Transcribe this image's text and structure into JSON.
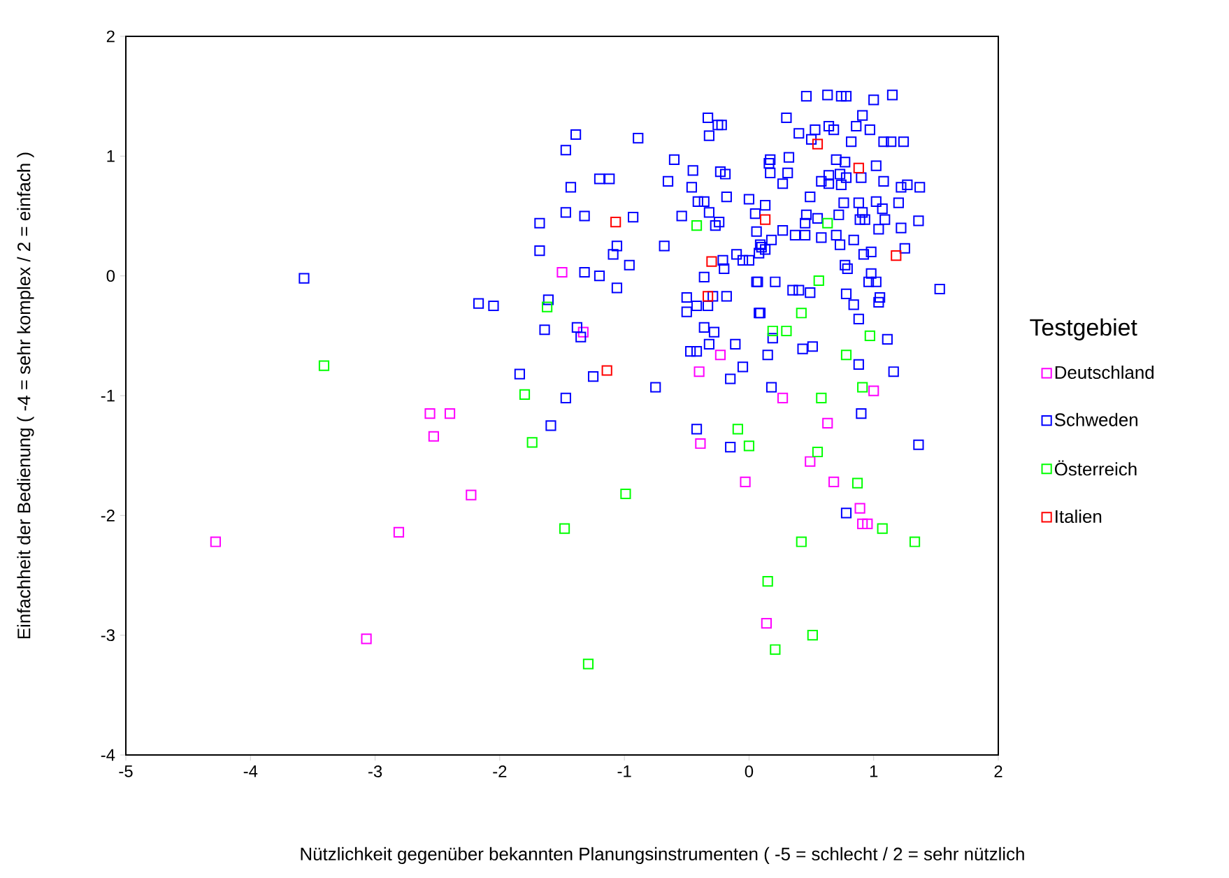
{
  "chart_data": {
    "type": "scatter",
    "xlabel": "Nützlichkeit gegenüber bekannten Planungsinstrumenten ( -5 = schlecht / 2 = sehr nützlich",
    "ylabel": "Einfachheit der Bedienung ( -4 = sehr komplex / 2 = einfach )",
    "legend_title": "Testgebiet",
    "xlim": [
      -5,
      2
    ],
    "ylim": [
      -4,
      2
    ],
    "xticks": [
      -5,
      -4,
      -3,
      -2,
      -1,
      0,
      1,
      2
    ],
    "yticks": [
      -4,
      -3,
      -2,
      -1,
      0,
      1,
      2
    ],
    "grid": false,
    "legend": "right",
    "marker": "square",
    "series": [
      {
        "name": "Deutschland",
        "color": "#ff00ff",
        "x": [
          -4.28,
          -3.07,
          -2.81,
          -2.56,
          -2.53,
          -2.4,
          -2.23,
          -1.5,
          -1.33,
          -0.4,
          -0.39,
          -0.23,
          -0.03,
          0.14,
          0.27,
          0.63,
          0.49,
          0.68,
          1.0,
          0.89,
          0.91,
          0.95
        ],
        "values": [
          -2.22,
          -3.03,
          -2.14,
          -1.15,
          -1.34,
          -1.15,
          -1.83,
          0.03,
          -0.47,
          -0.8,
          -1.4,
          -0.66,
          -1.72,
          -2.9,
          -1.02,
          -1.23,
          -1.55,
          -1.72,
          -0.96,
          -1.94,
          -2.07,
          -2.07
        ]
      },
      {
        "name": "Schweden",
        "color": "#0000ff",
        "x": [
          0.46,
          0.63,
          0.74,
          0.78,
          1.0,
          1.15,
          0.3,
          0.4,
          0.53,
          0.64,
          0.68,
          0.91,
          0.86,
          0.97,
          0.5,
          0.82,
          1.08,
          1.14,
          1.24,
          0.17,
          0.32,
          0.7,
          0.77,
          1.02,
          0.17,
          0.31,
          0.27,
          0.58,
          0.64,
          0.73,
          0.78,
          0.64,
          0.74,
          0.9,
          1.08,
          1.22,
          1.27,
          1.37,
          0.49,
          0.76,
          0.88,
          1.02,
          1.07,
          1.2,
          0.46,
          0.45,
          0.55,
          0.72,
          0.91,
          0.89,
          0.93,
          1.09,
          1.36,
          1.22,
          1.04,
          0.13,
          0.27,
          0.37,
          0.45,
          0.58,
          0.7,
          0.84,
          0.73,
          0.18,
          0.1,
          0.08,
          0.92,
          0.98,
          1.25,
          0.77,
          0.79,
          0.07,
          0.21,
          0.35,
          0.4,
          0.49,
          0.78,
          0.98,
          0.96,
          1.02,
          1.05,
          1.04,
          1.53,
          0.84,
          0.08,
          0.88,
          0.19,
          1.11,
          0.15,
          0.43,
          0.51,
          0.88,
          1.16,
          0.18,
          0.9,
          1.36,
          0.78,
          -1.39,
          -1.47,
          -0.89,
          -0.33,
          -0.25,
          -0.22,
          -0.32,
          -0.6,
          -0.45,
          -0.23,
          -0.19,
          0.16,
          -1.2,
          -1.12,
          -0.65,
          -0.46,
          -1.43,
          -1.47,
          -1.32,
          -0.93,
          -0.54,
          -0.41,
          -0.36,
          -0.32,
          -0.18,
          0.0,
          0.05,
          -0.24,
          -0.27,
          0.06,
          0.09,
          0.13,
          -1.06,
          -1.09,
          -0.68,
          -0.96,
          -1.32,
          -1.2,
          -0.21,
          -0.2,
          -0.1,
          -0.05,
          0.0,
          -0.36,
          0.06,
          -0.5,
          -0.42,
          -0.33,
          -0.5,
          -0.29,
          -0.18,
          0.09,
          -1.38,
          -1.35,
          -0.36,
          -0.28,
          -0.32,
          -0.11,
          -0.47,
          -0.42,
          -0.05,
          -1.25,
          -0.15,
          -0.75,
          -1.47,
          -0.42,
          -0.15,
          -3.57,
          -2.17,
          -2.05,
          -1.68,
          -1.68,
          -1.61,
          -1.64,
          -1.84,
          -1.59,
          -1.06
        ],
        "values": [
          1.5,
          1.51,
          1.5,
          1.5,
          1.47,
          1.51,
          1.32,
          1.19,
          1.22,
          1.25,
          1.22,
          1.34,
          1.25,
          1.22,
          1.14,
          1.12,
          1.12,
          1.12,
          1.12,
          0.97,
          0.99,
          0.97,
          0.95,
          0.92,
          0.86,
          0.86,
          0.77,
          0.79,
          0.84,
          0.85,
          0.82,
          0.77,
          0.76,
          0.82,
          0.79,
          0.74,
          0.76,
          0.74,
          0.66,
          0.61,
          0.61,
          0.62,
          0.56,
          0.61,
          0.51,
          0.44,
          0.48,
          0.51,
          0.53,
          0.47,
          0.47,
          0.47,
          0.46,
          0.4,
          0.39,
          0.59,
          0.38,
          0.34,
          0.34,
          0.32,
          0.34,
          0.3,
          0.26,
          0.3,
          0.24,
          0.19,
          0.18,
          0.2,
          0.23,
          0.09,
          0.06,
          -0.05,
          -0.05,
          -0.12,
          -0.12,
          -0.14,
          -0.15,
          0.02,
          -0.05,
          -0.05,
          -0.18,
          -0.22,
          -0.11,
          -0.24,
          -0.31,
          -0.36,
          -0.52,
          -0.53,
          -0.66,
          -0.61,
          -0.59,
          -0.74,
          -0.8,
          -0.93,
          -1.15,
          -1.41,
          -1.98,
          1.18,
          1.05,
          1.15,
          1.32,
          1.26,
          1.26,
          1.17,
          0.97,
          0.88,
          0.87,
          0.85,
          0.94,
          0.81,
          0.81,
          0.79,
          0.74,
          0.74,
          0.53,
          0.5,
          0.49,
          0.5,
          0.62,
          0.62,
          0.53,
          0.66,
          0.64,
          0.52,
          0.45,
          0.42,
          0.37,
          0.26,
          0.22,
          0.25,
          0.18,
          0.25,
          0.09,
          0.03,
          0.0,
          0.13,
          0.06,
          0.18,
          0.13,
          0.13,
          -0.01,
          -0.05,
          -0.18,
          -0.25,
          -0.25,
          -0.3,
          -0.17,
          -0.17,
          -0.31,
          -0.43,
          -0.51,
          -0.43,
          -0.47,
          -0.57,
          -0.57,
          -0.63,
          -0.63,
          -0.76,
          -0.84,
          -0.86,
          -0.93,
          -1.02,
          -1.28,
          -1.43,
          -0.02,
          -0.23,
          -0.25,
          0.44,
          0.21,
          -0.2,
          -0.45,
          -0.82,
          -1.25,
          -0.1
        ]
      },
      {
        "name": "Österreich",
        "color": "#00ff00",
        "x": [
          -3.41,
          -1.8,
          -1.74,
          -1.48,
          -1.62,
          -0.42,
          0.19,
          0.3,
          -0.09,
          0.0,
          -0.99,
          0.15,
          0.21,
          -1.29,
          0.63,
          0.56,
          0.42,
          0.97,
          0.78,
          0.91,
          0.58,
          0.55,
          0.87,
          1.07,
          0.42,
          1.33,
          0.51
        ],
        "values": [
          -0.75,
          -0.99,
          -1.39,
          -2.11,
          -0.26,
          0.42,
          -0.46,
          -0.46,
          -1.28,
          -1.42,
          -1.82,
          -2.55,
          -3.12,
          -3.24,
          0.44,
          -0.04,
          -0.31,
          -0.5,
          -0.66,
          -0.93,
          -1.02,
          -1.47,
          -1.73,
          -2.11,
          -2.22,
          -2.22,
          -3.0
        ]
      },
      {
        "name": "Italien",
        "color": "#ff0000",
        "x": [
          -1.07,
          -0.3,
          -0.33,
          -1.14,
          0.13,
          0.55,
          0.88,
          1.18
        ],
        "values": [
          0.45,
          0.12,
          -0.17,
          -0.79,
          0.47,
          1.1,
          0.9,
          0.17
        ]
      }
    ]
  }
}
